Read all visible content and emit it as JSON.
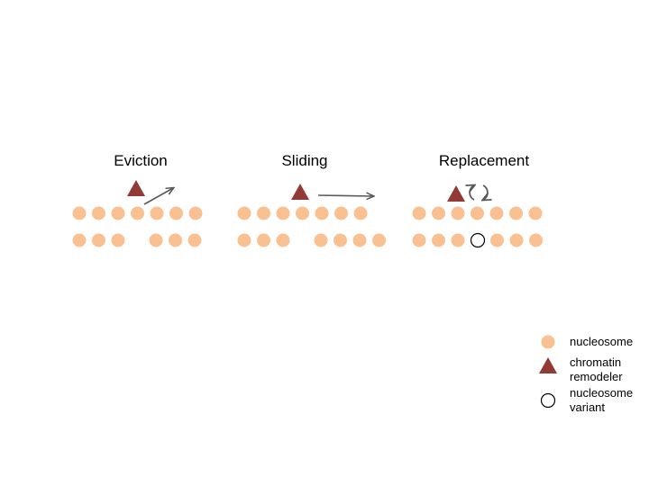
{
  "panels": [
    {
      "id": "eviction",
      "title": "Eviction",
      "top_row": [
        "nucleosome",
        "nucleosome",
        "nucleosome",
        "nucleosome",
        "nucleosome",
        "nucleosome",
        "nucleosome"
      ],
      "bottom_row": [
        "nucleosome",
        "nucleosome",
        "nucleosome",
        "gap",
        "nucleosome",
        "nucleosome",
        "nucleosome"
      ],
      "action": "diagonal-arrow"
    },
    {
      "id": "sliding",
      "title": "Sliding",
      "top_row": [
        "nucleosome",
        "nucleosome",
        "nucleosome",
        "nucleosome",
        "nucleosome",
        "nucleosome",
        "nucleosome"
      ],
      "bottom_row": [
        "nucleosome",
        "nucleosome",
        "nucleosome",
        "gap",
        "nucleosome",
        "nucleosome",
        "nucleosome",
        "nucleosome"
      ],
      "action": "horizontal-arrow"
    },
    {
      "id": "replacement",
      "title": "Replacement",
      "top_row": [
        "nucleosome",
        "nucleosome",
        "nucleosome",
        "nucleosome",
        "nucleosome",
        "nucleosome",
        "nucleosome"
      ],
      "bottom_row": [
        "nucleosome",
        "nucleosome",
        "nucleosome",
        "variant",
        "nucleosome",
        "nucleosome",
        "nucleosome"
      ],
      "action": "exchange-arrows"
    }
  ],
  "legend": [
    {
      "symbol": "nucleosome",
      "label": "nucleosome"
    },
    {
      "symbol": "chromatin-remodeler",
      "label": "chromatin\nremodeler"
    },
    {
      "symbol": "nucleosome-variant",
      "label": "nucleosome\nvariant"
    }
  ],
  "colors": {
    "nucleosome": "#f9c192",
    "remodeler": "#923a35",
    "arrow": "#595959",
    "variant_stroke": "#000000"
  }
}
